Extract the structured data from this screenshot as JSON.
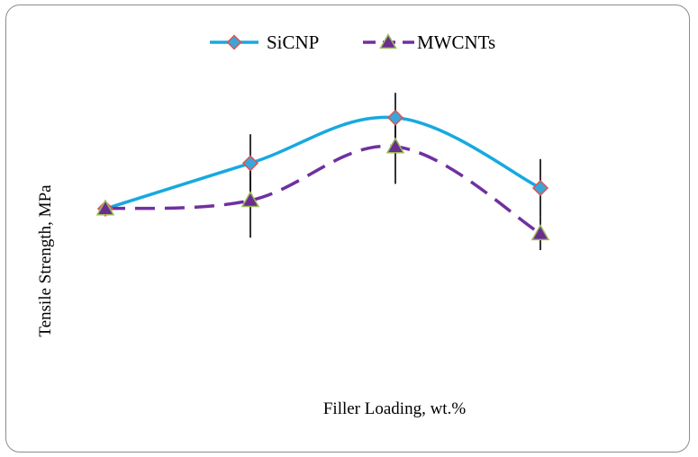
{
  "chart_data": {
    "type": "line",
    "title": "",
    "xlabel": "Filler Loading, wt.%",
    "ylabel": "Tensile Strength, MPa",
    "x": [
      1,
      2,
      3,
      4
    ],
    "axes_visible": false,
    "ticks_visible": false,
    "legend_position": "top",
    "series": [
      {
        "name": "SiCNP",
        "color": "#17a9e0",
        "marker": "diamond",
        "marker_fill": "#3aa6d8",
        "marker_edge": "#e05050",
        "line_style": "solid",
        "smooth": true,
        "values": [
          45,
          56,
          67,
          50
        ],
        "error": [
          0,
          7,
          6,
          7
        ]
      },
      {
        "name": "MWCNTs",
        "color": "#7030a0",
        "marker": "triangle",
        "marker_fill": "#6a2d91",
        "marker_edge": "#9bbb59",
        "line_style": "dashed",
        "smooth": true,
        "values": [
          45,
          47,
          60,
          39
        ],
        "error": [
          0,
          9,
          9,
          4
        ]
      }
    ]
  }
}
